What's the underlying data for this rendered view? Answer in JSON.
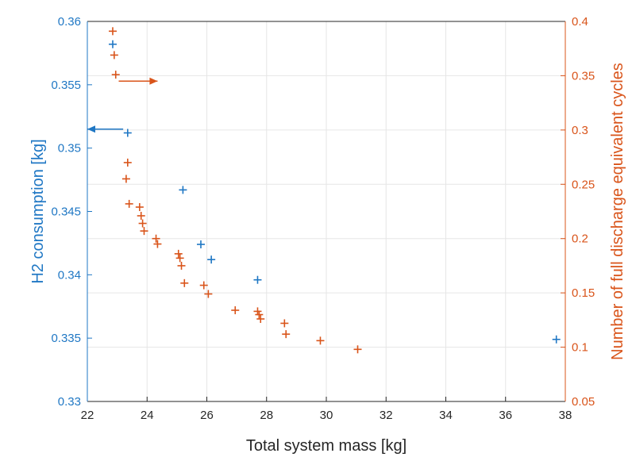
{
  "chart_data": {
    "type": "scatter",
    "title": "",
    "xlabel": "Total system mass [kg]",
    "ylabel_left": "H2 consumption [kg]",
    "ylabel_right": "Number of full discharge equivalent cycles",
    "xlim": [
      22,
      38
    ],
    "ylim_left": [
      0.33,
      0.36
    ],
    "ylim_right": [
      0.05,
      0.4
    ],
    "x_ticks": [
      "22",
      "24",
      "26",
      "28",
      "30",
      "32",
      "34",
      "36",
      "38"
    ],
    "y_left_ticks": [
      "0.33",
      "0.335",
      "0.34",
      "0.345",
      "0.35",
      "0.355",
      "0.36"
    ],
    "y_right_ticks": [
      "0.05",
      "0.1",
      "0.15",
      "0.2",
      "0.25",
      "0.3",
      "0.35",
      "0.4"
    ],
    "grid": true,
    "colors": {
      "left": "#1f77c4",
      "right": "#d9541a"
    },
    "series": [
      {
        "axis": "left",
        "marker": "+",
        "points": [
          [
            22.85,
            0.3582
          ],
          [
            23.35,
            0.3512
          ],
          [
            25.2,
            0.3467
          ],
          [
            25.8,
            0.3424
          ],
          [
            26.15,
            0.3412
          ],
          [
            27.7,
            0.3396
          ],
          [
            37.7,
            0.3349
          ]
        ]
      },
      {
        "axis": "right",
        "marker": "+",
        "points": [
          [
            22.85,
            0.391
          ],
          [
            22.9,
            0.369
          ],
          [
            22.95,
            0.351
          ],
          [
            23.35,
            0.27
          ],
          [
            23.3,
            0.255
          ],
          [
            23.4,
            0.232
          ],
          [
            23.75,
            0.229
          ],
          [
            23.8,
            0.221
          ],
          [
            23.85,
            0.214
          ],
          [
            23.9,
            0.207
          ],
          [
            24.3,
            0.2
          ],
          [
            24.35,
            0.195
          ],
          [
            25.05,
            0.186
          ],
          [
            25.1,
            0.182
          ],
          [
            25.15,
            0.175
          ],
          [
            25.25,
            0.159
          ],
          [
            25.9,
            0.157
          ],
          [
            26.05,
            0.149
          ],
          [
            26.95,
            0.134
          ],
          [
            27.7,
            0.133
          ],
          [
            27.75,
            0.13
          ],
          [
            27.8,
            0.126
          ],
          [
            28.6,
            0.122
          ],
          [
            28.65,
            0.112
          ],
          [
            29.8,
            0.106
          ],
          [
            31.05,
            0.098
          ]
        ]
      }
    ]
  }
}
